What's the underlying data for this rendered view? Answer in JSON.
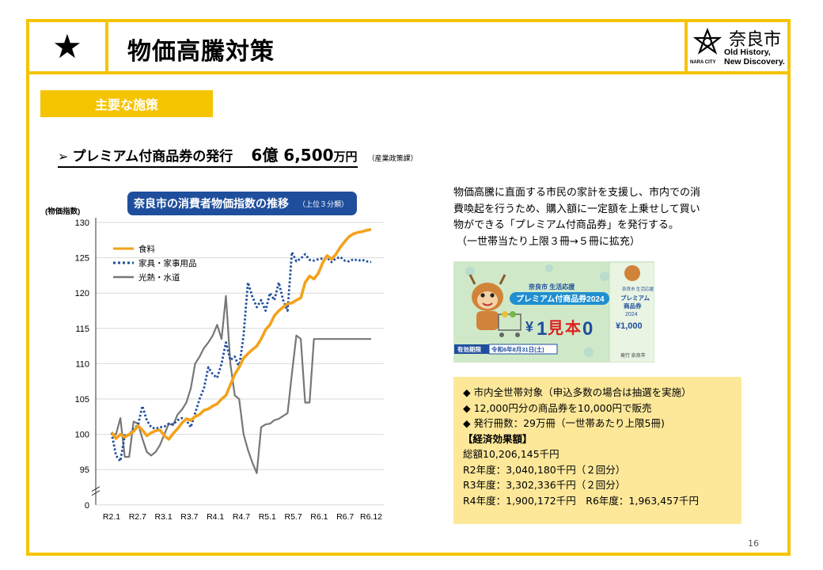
{
  "header": {
    "star": "★",
    "title": "物価高騰対策",
    "logo": {
      "name": "奈良市",
      "tagline_1": "Old History,",
      "tagline_2": "New Discovery.",
      "city": "NARA CITY"
    }
  },
  "section_tag": "主要な施策",
  "measure": {
    "bullet": "➢",
    "title": "プレミアム付商品券の発行",
    "amount_big": "6億 6,500",
    "amount_unit": "万円",
    "dept": "（産業政策課）"
  },
  "description": {
    "lines": [
      "物価高騰に直面する市民の家計を支援し、市内での消",
      "費喚起を行うため、購入額に一定額を上乗せして買い",
      "物ができる「プレミアム付商品券」を発行する。"
    ],
    "note": "（一世帯当たり上限３冊→５冊に拡充）"
  },
  "ticket": {
    "header": "奈良市 生活応援",
    "title": "プレミアム付商品券2024",
    "yen": "¥",
    "sample_1": "1",
    "sample_2": "見",
    "sample_3": "本",
    "sample_4": "0",
    "expiry_label": "有効期限",
    "expiry_date": "令和6年8月31日(土)",
    "side_header": "奈良市 生活応援",
    "side_title_1": "プレミアム",
    "side_title_2": "商品券",
    "side_year": "2024",
    "side_value": "¥1,000",
    "issuer": "発行 奈良市"
  },
  "info": {
    "bullets": [
      "◆ 市内全世帯対象（申込多数の場合は抽選を実施）",
      "◆ 12,000円分の商品券を10,000円で販売",
      "◆ 発行冊数：29万冊（一世帯あたり上限5冊)"
    ],
    "effect_header": "【経済効果額】",
    "effect_lines": [
      "総額10,206,145千円",
      "R2年度：3,040,180千円（２回分）",
      "R3年度：3,302,336千円（２回分）",
      "R4年度：1,900,172千円　R6年度：1,963,457千円"
    ]
  },
  "page_number": "16",
  "colors": {
    "accent": "#f5c400",
    "food": "#f3a21c",
    "household": "#1f4e9c",
    "utilities": "#777777",
    "chart_title_bg": "#1f4e9c"
  },
  "chart_data": {
    "type": "line",
    "title": "奈良市の消費者物価指数の推移",
    "title_note": "（上位３分類）",
    "ylabel": "(物価指数)",
    "xlabel": "",
    "ylim": [
      95,
      130
    ],
    "y_ticks": [
      "130",
      "125",
      "120",
      "115",
      "110",
      "105",
      "100",
      "95",
      "0"
    ],
    "x_ticks": [
      "R2.1",
      "R2.7",
      "R3.1",
      "R3.7",
      "R4.1",
      "R4.7",
      "R5.1",
      "R5.7",
      "R6.1",
      "R6.7",
      "R6.12"
    ],
    "axis_break": true,
    "grid": true,
    "legend_position": "top-left",
    "series": [
      {
        "name": "食料",
        "values": [
          100.3,
          99.4,
          100.0,
          99.6,
          100.0,
          100.4,
          101.2,
          100.6,
          99.8,
          100.2,
          100.5,
          100.6,
          99.8,
          99.3,
          100.1,
          100.8,
          101.6,
          102.2,
          102.0,
          102.5,
          102.8,
          103.4,
          103.6,
          104.0,
          104.3,
          105.0,
          105.5,
          107.0,
          108.5,
          109.5,
          110.8,
          111.4,
          112.0,
          112.5,
          113.5,
          114.8,
          115.5,
          116.8,
          117.5,
          118.0,
          118.5,
          118.6,
          119.0,
          119.3,
          121.5,
          122.4,
          122.0,
          122.8,
          124.3,
          125.3,
          124.8,
          125.5,
          126.5,
          127.3,
          128.0,
          128.4,
          128.6,
          128.7,
          128.9,
          129.0
        ]
      },
      {
        "name": "家具・家事用品",
        "values": [
          100.2,
          97.0,
          96.2,
          99.9,
          99.9,
          100.8,
          101.3,
          104.0,
          102.0,
          101.0,
          100.8,
          101.0,
          101.1,
          101.5,
          101.4,
          102.0,
          102.3,
          102.0,
          101.0,
          103.0,
          105.0,
          106.5,
          109.5,
          108.5,
          108.0,
          110.0,
          113.0,
          110.5,
          111.0,
          109.5,
          114.0,
          121.5,
          119.5,
          118.0,
          119.0,
          117.5,
          120.0,
          119.0,
          121.5,
          119.0,
          117.5,
          125.8,
          124.5,
          124.9,
          125.5,
          124.7,
          124.6,
          124.8,
          124.9,
          125.0,
          124.4,
          124.9,
          125.1,
          124.6,
          124.5,
          124.8,
          124.6,
          124.7,
          124.5,
          124.4
        ]
      },
      {
        "name": "光熱・水道",
        "values": [
          100.0,
          100.0,
          102.3,
          96.8,
          96.8,
          101.8,
          101.5,
          99.4,
          97.5,
          97.0,
          97.5,
          98.5,
          100.0,
          101.5,
          101.3,
          102.8,
          103.5,
          104.5,
          106.5,
          110.0,
          111.0,
          112.2,
          113.0,
          114.0,
          115.5,
          113.5,
          119.6,
          110.0,
          105.5,
          105.0,
          100.0,
          97.8,
          96.0,
          94.5,
          101.0,
          101.4,
          101.5,
          102.0,
          102.2,
          102.6,
          103.0,
          108.6,
          114.0,
          113.5,
          104.5,
          104.5,
          113.5,
          113.5,
          113.5,
          113.5,
          113.5,
          113.5,
          113.5,
          113.5,
          113.5,
          113.5,
          113.5,
          113.5,
          113.5,
          113.5
        ]
      }
    ]
  }
}
